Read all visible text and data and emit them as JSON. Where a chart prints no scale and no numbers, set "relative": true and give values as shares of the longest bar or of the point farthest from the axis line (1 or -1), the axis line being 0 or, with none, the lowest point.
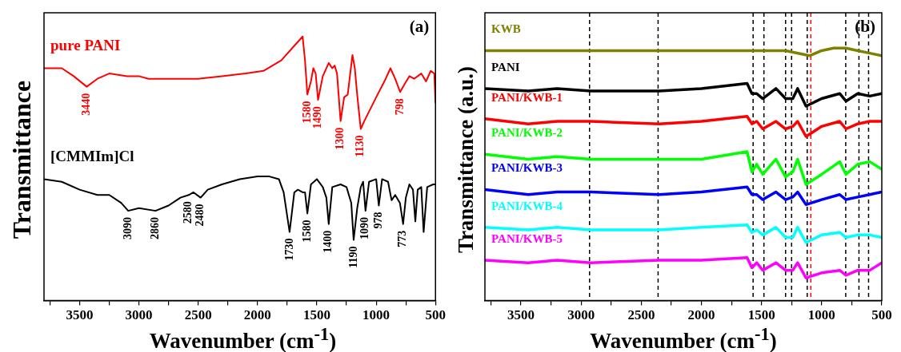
{
  "chart_data": [
    {
      "type": "line",
      "title": "(a)",
      "xlabel": "Wavenumber (cm$^{-1}$)",
      "ylabel": "Transmittance",
      "relative": true,
      "legend": false,
      "grid": false,
      "marker": "none",
      "xlim": [
        3800,
        500
      ],
      "xticks": [
        {
          "value": 3750,
          "label": null
        },
        3500,
        {
          "value": 3250,
          "label": null
        },
        3000,
        {
          "value": 2750,
          "label": null
        },
        2500,
        {
          "value": 2250,
          "label": null
        },
        2000,
        {
          "value": 1750,
          "label": null
        },
        1500,
        {
          "value": 1250,
          "label": null
        },
        1000,
        {
          "value": 750,
          "label": null
        },
        500
      ],
      "series": [
        {
          "name": "pure PANI",
          "color": "#ff0000",
          "x": [
            3800,
            3650,
            3550,
            3440,
            3350,
            3250,
            3100,
            3000,
            2920,
            2800,
            2500,
            2300,
            2100,
            1950,
            1800,
            1700,
            1620,
            1600,
            1580,
            1550,
            1530,
            1510,
            1490,
            1450,
            1400,
            1370,
            1350,
            1330,
            1300,
            1270,
            1240,
            1200,
            1180,
            1160,
            1130,
            1100,
            1000,
            920,
            880,
            840,
            798,
            760,
            720,
            680,
            620,
            580,
            540,
            510,
            500
          ],
          "values": [
            0.88,
            0.88,
            0.85,
            0.81,
            0.84,
            0.86,
            0.85,
            0.85,
            0.84,
            0.84,
            0.84,
            0.85,
            0.86,
            0.87,
            0.91,
            0.96,
            1.0,
            0.91,
            0.78,
            0.83,
            0.88,
            0.86,
            0.76,
            0.85,
            0.9,
            0.88,
            0.89,
            0.86,
            0.68,
            0.77,
            0.78,
            0.93,
            0.88,
            0.78,
            0.65,
            0.68,
            0.77,
            0.84,
            0.88,
            0.84,
            0.79,
            0.82,
            0.85,
            0.84,
            0.86,
            0.83,
            0.87,
            0.86,
            0.75
          ]
        },
        {
          "name": "[CMMIm]Cl",
          "color": "#000000",
          "x": [
            3800,
            3650,
            3500,
            3350,
            3250,
            3150,
            3090,
            3000,
            2860,
            2750,
            2650,
            2580,
            2540,
            2480,
            2420,
            2300,
            2150,
            2000,
            1900,
            1820,
            1780,
            1730,
            1690,
            1660,
            1620,
            1600,
            1580,
            1550,
            1500,
            1450,
            1420,
            1400,
            1370,
            1300,
            1250,
            1210,
            1190,
            1160,
            1130,
            1110,
            1090,
            1060,
            1000,
            978,
            950,
            900,
            870,
            840,
            800,
            773,
            750,
            720,
            690,
            670,
            650,
            620,
            600,
            570,
            520,
            500
          ],
          "values": [
            0.46,
            0.45,
            0.42,
            0.4,
            0.4,
            0.37,
            0.34,
            0.35,
            0.34,
            0.36,
            0.39,
            0.4,
            0.41,
            0.39,
            0.42,
            0.44,
            0.46,
            0.47,
            0.47,
            0.46,
            0.41,
            0.26,
            0.41,
            0.42,
            0.41,
            0.41,
            0.33,
            0.44,
            0.46,
            0.43,
            0.39,
            0.29,
            0.43,
            0.44,
            0.43,
            0.37,
            0.23,
            0.35,
            0.43,
            0.45,
            0.34,
            0.45,
            0.46,
            0.36,
            0.46,
            0.45,
            0.38,
            0.4,
            0.37,
            0.29,
            0.39,
            0.44,
            0.42,
            0.3,
            0.42,
            0.43,
            0.26,
            0.43,
            0.44,
            0.44
          ]
        }
      ],
      "annotations": [
        {
          "text": "3440",
          "x": 3440,
          "y": 0.81
        },
        {
          "text": "1580",
          "x": 1580,
          "y": 0.78
        },
        {
          "text": "1490",
          "x": 1490,
          "y": 0.76
        },
        {
          "text": "1300",
          "x": 1300,
          "y": 0.68
        },
        {
          "text": "1130",
          "x": 1130,
          "y": 0.65
        },
        {
          "text": "798",
          "x": 798,
          "y": 0.79
        },
        {
          "text": "3090",
          "x": 3090,
          "y": 0.34
        },
        {
          "text": "2860",
          "x": 2860,
          "y": 0.34
        },
        {
          "text": "2580",
          "x": 2580,
          "y": 0.4
        },
        {
          "text": "2480",
          "x": 2480,
          "y": 0.39
        },
        {
          "text": "1730",
          "x": 1730,
          "y": 0.26
        },
        {
          "text": "1580",
          "x": 1580,
          "y": 0.33
        },
        {
          "text": "1400",
          "x": 1400,
          "y": 0.29
        },
        {
          "text": "1190",
          "x": 1190,
          "y": 0.23
        },
        {
          "text": "1090",
          "x": 1090,
          "y": 0.34
        },
        {
          "text": "978",
          "x": 978,
          "y": 0.36
        },
        {
          "text": "773",
          "x": 773,
          "y": 0.29
        }
      ]
    },
    {
      "type": "line",
      "title": "(b)",
      "xlabel": "Wavenumber (cm$^{-1}$)",
      "ylabel": "Transmittance (a.u.)",
      "relative": true,
      "legend": false,
      "grid": false,
      "marker": "none",
      "xlim": [
        3800,
        500
      ],
      "xticks": [
        {
          "value": 3750,
          "label": null
        },
        3500,
        {
          "value": 3250,
          "label": null
        },
        3000,
        {
          "value": 2750,
          "label": null
        },
        2500,
        {
          "value": 2250,
          "label": null
        },
        2000,
        {
          "value": 1750,
          "label": null
        },
        1500,
        {
          "value": 1250,
          "label": null
        },
        1000,
        {
          "value": 750,
          "label": null
        },
        500
      ],
      "x": [
        3800,
        3440,
        3200,
        2920,
        2350,
        2000,
        1620,
        1580,
        1540,
        1490,
        1380,
        1300,
        1240,
        1200,
        1130,
        1000,
        850,
        798,
        700,
        600,
        500
      ],
      "series": [
        {
          "name": "KWB",
          "color": "#808000",
          "x": [
            3800,
            3000,
            2000,
            1500,
            1300,
            1100,
            1000,
            900,
            800,
            700,
            600,
            500
          ],
          "values": [
            0.99,
            0.99,
            0.99,
            0.99,
            0.99,
            0.97,
            0.99,
            1.0,
            1.0,
            0.99,
            0.98,
            0.97
          ]
        },
        {
          "name": "PANI",
          "color": "#000000",
          "values": [
            0.84,
            0.83,
            0.84,
            0.83,
            0.83,
            0.84,
            0.86,
            0.82,
            0.82,
            0.8,
            0.84,
            0.8,
            0.8,
            0.84,
            0.77,
            0.8,
            0.82,
            0.79,
            0.82,
            0.81,
            0.82
          ]
        },
        {
          "name": "PANI/KWB-1",
          "color": "#ff0000",
          "values": [
            0.72,
            0.7,
            0.71,
            0.71,
            0.7,
            0.71,
            0.73,
            0.7,
            0.71,
            0.68,
            0.71,
            0.68,
            0.69,
            0.71,
            0.65,
            0.69,
            0.71,
            0.68,
            0.7,
            0.71,
            0.71
          ]
        },
        {
          "name": "PANI/KWB-2",
          "color": "#00ff00",
          "values": [
            0.58,
            0.56,
            0.57,
            0.56,
            0.56,
            0.56,
            0.59,
            0.51,
            0.54,
            0.5,
            0.56,
            0.49,
            0.51,
            0.56,
            0.46,
            0.5,
            0.55,
            0.5,
            0.54,
            0.55,
            0.52
          ]
        },
        {
          "name": "PANI/KWB-3",
          "color": "#0000ff",
          "values": [
            0.44,
            0.42,
            0.43,
            0.43,
            0.42,
            0.43,
            0.45,
            0.42,
            0.42,
            0.4,
            0.43,
            0.4,
            0.41,
            0.43,
            0.38,
            0.4,
            0.42,
            0.4,
            0.41,
            0.42,
            0.43
          ]
        },
        {
          "name": "PANI/KWB-4",
          "color": "#00ffff",
          "values": [
            0.29,
            0.28,
            0.29,
            0.28,
            0.28,
            0.29,
            0.3,
            0.27,
            0.28,
            0.26,
            0.29,
            0.25,
            0.25,
            0.29,
            0.23,
            0.26,
            0.27,
            0.25,
            0.26,
            0.26,
            0.25
          ]
        },
        {
          "name": "PANI/KWB-5",
          "color": "#ff00ff",
          "values": [
            0.16,
            0.15,
            0.16,
            0.15,
            0.16,
            0.16,
            0.17,
            0.13,
            0.15,
            0.12,
            0.15,
            0.12,
            0.12,
            0.15,
            0.09,
            0.11,
            0.12,
            0.1,
            0.12,
            0.12,
            0.15
          ]
        }
      ],
      "ref_lines": [
        {
          "axis": "x",
          "value": 2930,
          "color": "#000000",
          "line_style": "dashed"
        },
        {
          "axis": "x",
          "value": 2360,
          "color": "#000000",
          "line_style": "dashed"
        },
        {
          "axis": "x",
          "value": 1570,
          "color": "#000000",
          "line_style": "dashed"
        },
        {
          "axis": "x",
          "value": 1480,
          "color": "#000000",
          "line_style": "dashed"
        },
        {
          "axis": "x",
          "value": 1300,
          "color": "#000000",
          "line_style": "dashed"
        },
        {
          "axis": "x",
          "value": 1250,
          "color": "#000000",
          "line_style": "dashed"
        },
        {
          "axis": "x",
          "value": 1120,
          "color": "#000000",
          "line_style": "dashed"
        },
        {
          "axis": "x",
          "value": 1090,
          "color": "#ff0000",
          "line_style": "dashed"
        },
        {
          "axis": "x",
          "value": 800,
          "color": "#000000",
          "line_style": "dashed"
        },
        {
          "axis": "x",
          "value": 690,
          "color": "#000000",
          "line_style": "dashed"
        },
        {
          "axis": "x",
          "value": 610,
          "color": "#000000",
          "line_style": "dashed"
        }
      ]
    }
  ]
}
